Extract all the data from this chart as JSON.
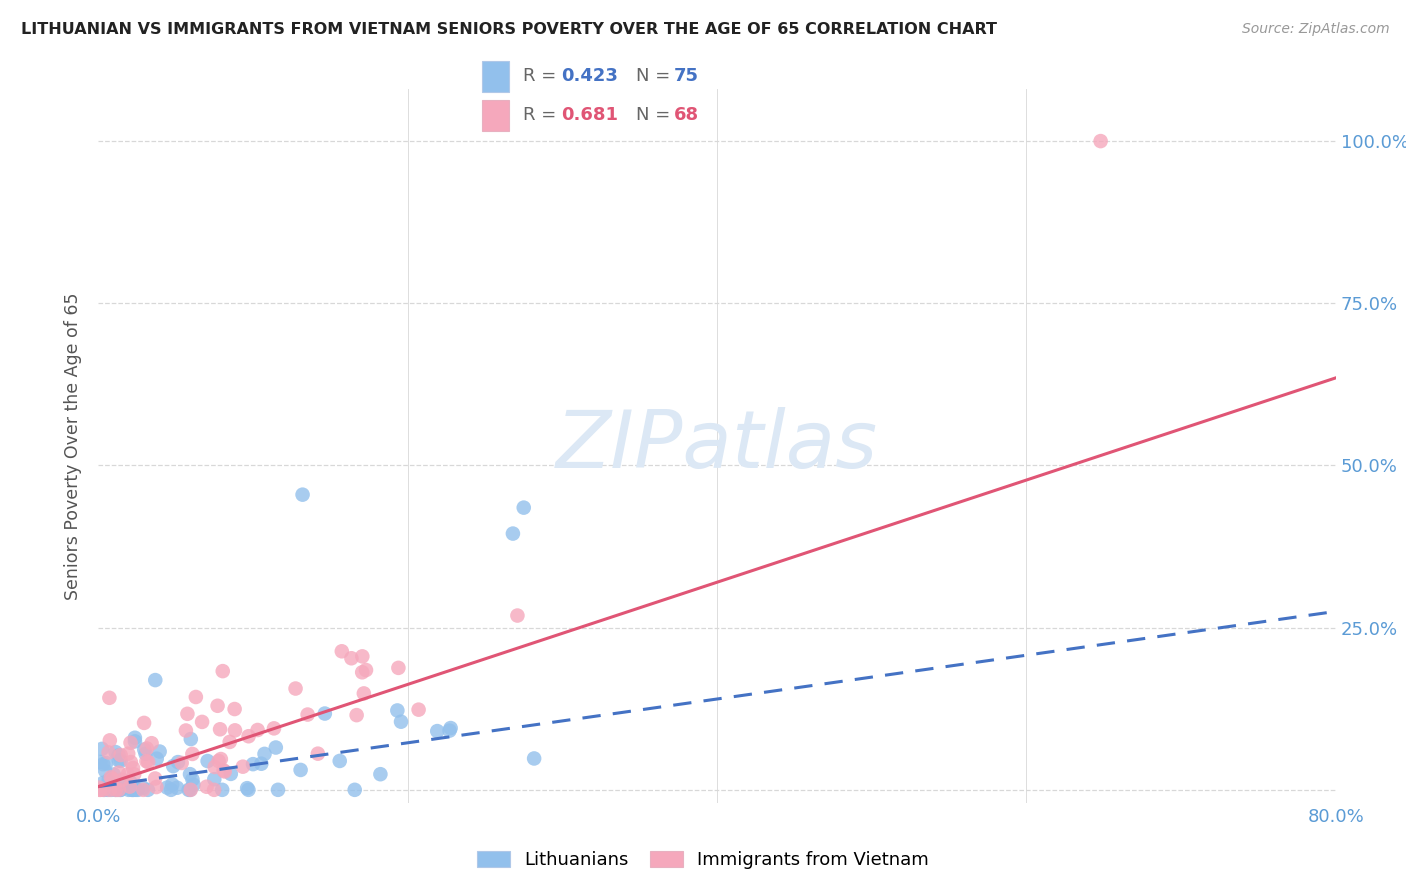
{
  "title": "LITHUANIAN VS IMMIGRANTS FROM VIETNAM SENIORS POVERTY OVER THE AGE OF 65 CORRELATION CHART",
  "source": "Source: ZipAtlas.com",
  "ylabel": "Seniors Poverty Over the Age of 65",
  "xlim": [
    0.0,
    0.8
  ],
  "ylim": [
    -0.02,
    1.08
  ],
  "ytick_vals": [
    0.0,
    0.25,
    0.5,
    0.75,
    1.0
  ],
  "ytick_labels_right": [
    "",
    "25.0%",
    "50.0%",
    "75.0%",
    "100.0%"
  ],
  "xtick_vals": [
    0.0,
    0.2,
    0.4,
    0.6,
    0.8
  ],
  "xtick_labels": [
    "0.0%",
    "",
    "",
    "",
    "80.0%"
  ],
  "blue_color": "#92c0ec",
  "pink_color": "#f5a8bc",
  "blue_line_color": "#4472c4",
  "pink_line_color": "#e05575",
  "axis_tick_color": "#5b9bd5",
  "grid_color": "#d8d8d8",
  "watermark_color": "#dce8f5",
  "title_color": "#222222",
  "ylabel_color": "#555555",
  "source_color": "#999999",
  "seed": 42,
  "n_blue": 75,
  "n_pink": 68,
  "blue_line_x0": 0.0,
  "blue_line_y0": 0.005,
  "blue_line_x1": 0.8,
  "blue_line_y1": 0.275,
  "pink_line_x0": 0.0,
  "pink_line_y0": 0.005,
  "pink_line_x1": 0.8,
  "pink_line_y1": 0.635,
  "legend_r1": "0.423",
  "legend_n1": "75",
  "legend_r2": "0.681",
  "legend_n2": "68",
  "watermark": "ZIPatlas"
}
